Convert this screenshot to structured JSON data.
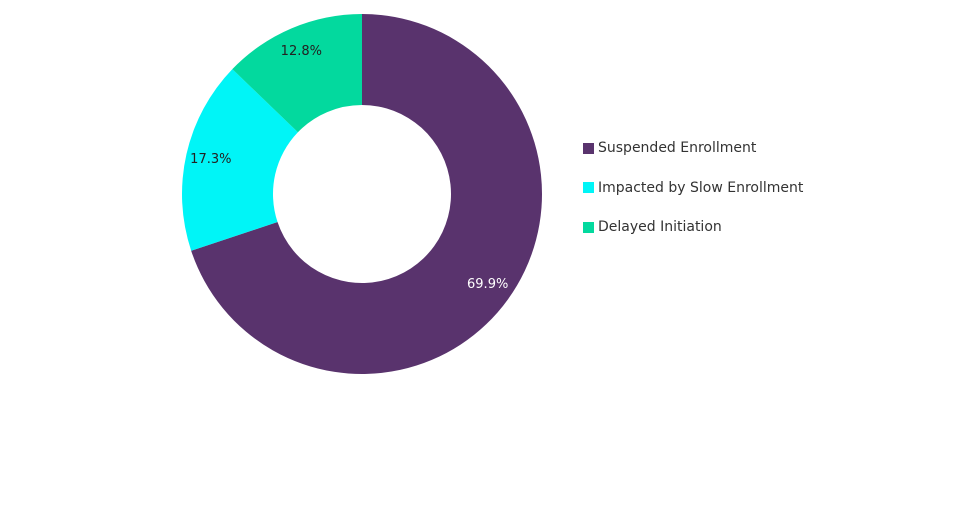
{
  "chart_data": {
    "type": "pie",
    "style": "donut",
    "title": "",
    "legend_position": "right",
    "labels": [
      "Suspended Enrollment",
      "Impacted by Slow Enrollment",
      "Delayed Initiation"
    ],
    "values": [
      69.9,
      17.3,
      12.8
    ],
    "value_labels": [
      "69.9%",
      "17.3%",
      "12.8%"
    ],
    "unit": "%",
    "colors": [
      "#59336d",
      "#00f5f7",
      "#03d99e"
    ],
    "label_colors": [
      "#ffffff",
      "#222222",
      "#222222"
    ]
  }
}
